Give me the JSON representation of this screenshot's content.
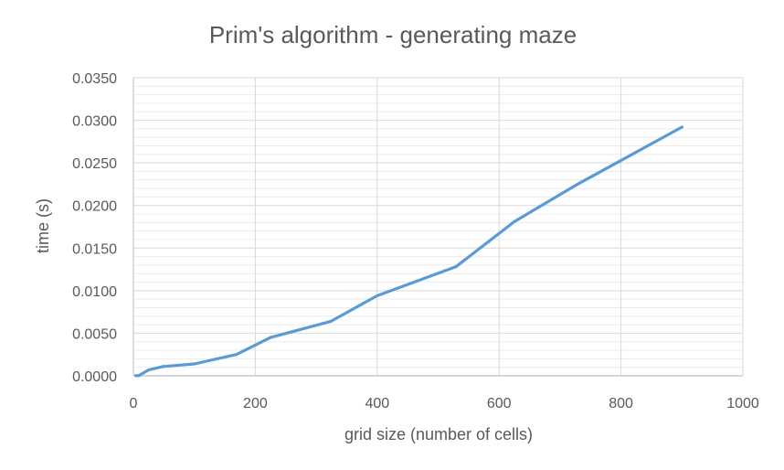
{
  "chart_data": {
    "type": "line",
    "title": "Prim's algorithm - generating maze",
    "xlabel": "grid size (number of cells)",
    "ylabel": "time (s)",
    "xlim": [
      0,
      1000
    ],
    "ylim": [
      0,
      0.035
    ],
    "x_ticks": [
      "0",
      "200",
      "400",
      "600",
      "800",
      "1000"
    ],
    "y_ticks": [
      "0.0000",
      "0.0050",
      "0.0100",
      "0.0150",
      "0.0200",
      "0.0250",
      "0.0300",
      "0.0350"
    ],
    "grid": true,
    "minor_grid": true,
    "legend": "none",
    "series": [
      {
        "color": "#5B9BD5",
        "x": [
          4,
          9,
          25,
          49,
          100,
          169,
          225,
          324,
          400,
          529,
          625,
          729,
          900
        ],
        "y": [
          2e-05,
          2e-05,
          0.0007,
          0.0011,
          0.0014,
          0.0025,
          0.0045,
          0.0064,
          0.0094,
          0.0128,
          0.0181,
          0.0225,
          0.0292
        ]
      }
    ]
  }
}
